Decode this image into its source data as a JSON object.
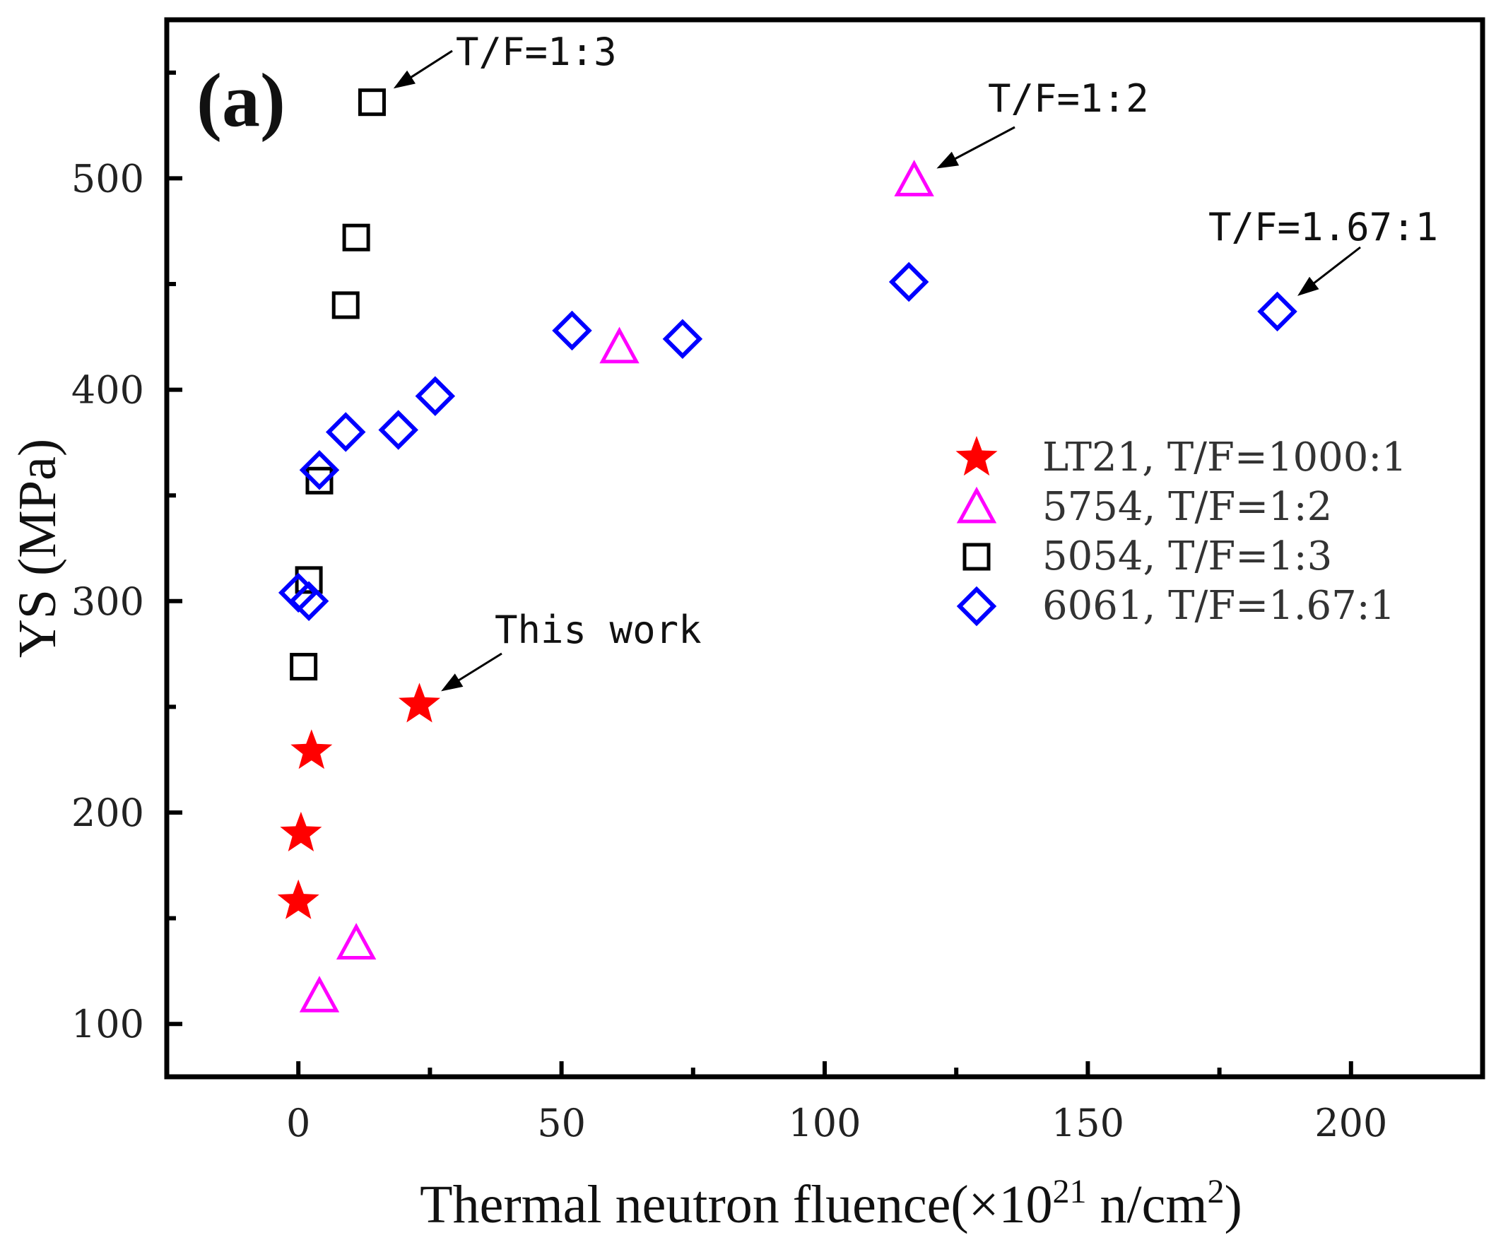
{
  "chart_data": {
    "type": "scatter",
    "panel_label": "(a)",
    "xlabel": "Thermal neutron fluence(×10",
    "xlabel_sup": "21",
    "xlabel_unit": " n/cm",
    "xlabel_unit_sup": "2",
    "xlabel_close": ")",
    "ylabel": "YS (MPa)",
    "xlim": [
      -25,
      225
    ],
    "ylim": [
      75,
      575
    ],
    "x_ticks": [
      0,
      50,
      100,
      150,
      200
    ],
    "x_tick_labels": [
      "0",
      "50",
      "100",
      "150",
      "200"
    ],
    "x_minor_ticks": [
      25,
      75,
      125,
      175
    ],
    "y_ticks": [
      100,
      200,
      300,
      400,
      500
    ],
    "y_tick_labels": [
      "100",
      "200",
      "300",
      "400",
      "500"
    ],
    "y_minor_ticks": [
      150,
      250,
      350,
      450,
      550
    ],
    "legend_position": "center-right",
    "series": [
      {
        "name": "LT21, T/F=1000:1",
        "marker": "star",
        "color": "#ff0000",
        "points": [
          [
            0,
            158
          ],
          [
            0.5,
            190
          ],
          [
            2.5,
            229
          ],
          [
            23,
            251
          ]
        ]
      },
      {
        "name": "5754, T/F=1:2",
        "marker": "triangle",
        "color": "#ff00ff",
        "points": [
          [
            4,
            113
          ],
          [
            11,
            138
          ],
          [
            61,
            420
          ],
          [
            117,
            499
          ]
        ]
      },
      {
        "name": "5054, T/F=1:3",
        "marker": "square",
        "color": "#000000",
        "points": [
          [
            1,
            269
          ],
          [
            2,
            310
          ],
          [
            4,
            357
          ],
          [
            9,
            440
          ],
          [
            11,
            472
          ],
          [
            14,
            536
          ]
        ]
      },
      {
        "name": "6061, T/F=1.67:1",
        "marker": "diamond",
        "color": "#0000ff",
        "points": [
          [
            0,
            304
          ],
          [
            2,
            300
          ],
          [
            4,
            362
          ],
          [
            9,
            380
          ],
          [
            19,
            381
          ],
          [
            26,
            397
          ],
          [
            52,
            428
          ],
          [
            73,
            424
          ],
          [
            116,
            451
          ],
          [
            186,
            437
          ]
        ]
      }
    ],
    "annotations": [
      {
        "text": "T/F=1:3",
        "point": [
          14,
          536
        ]
      },
      {
        "text": "T/F=1:2",
        "point": [
          117,
          499
        ]
      },
      {
        "text": "T/F=1.67:1",
        "point": [
          186,
          437
        ]
      },
      {
        "text": "This work",
        "point": [
          23,
          251
        ]
      }
    ]
  }
}
